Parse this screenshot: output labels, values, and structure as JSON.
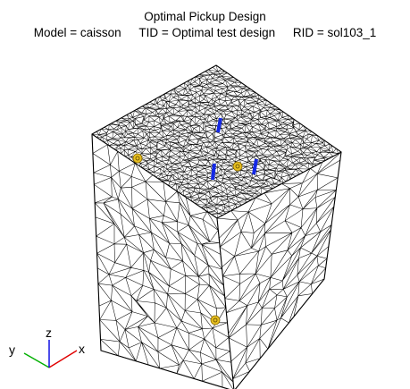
{
  "title": "Optimal Pickup Design",
  "meta": {
    "model": "Model = caisson",
    "tid": "TID = Optimal test design",
    "rid": "RID = sol103_1"
  },
  "triad": {
    "x_label": "x",
    "y_label": "y",
    "z_label": "z",
    "x_color": "#e00000",
    "y_color": "#00b000",
    "z_color": "#0000e0"
  },
  "mesh": {
    "line_color": "#000000",
    "background": "#ffffff"
  },
  "sensors": {
    "color": "#1428e6",
    "count": 3
  },
  "markers": {
    "color": "#e8c020",
    "count": 3
  }
}
